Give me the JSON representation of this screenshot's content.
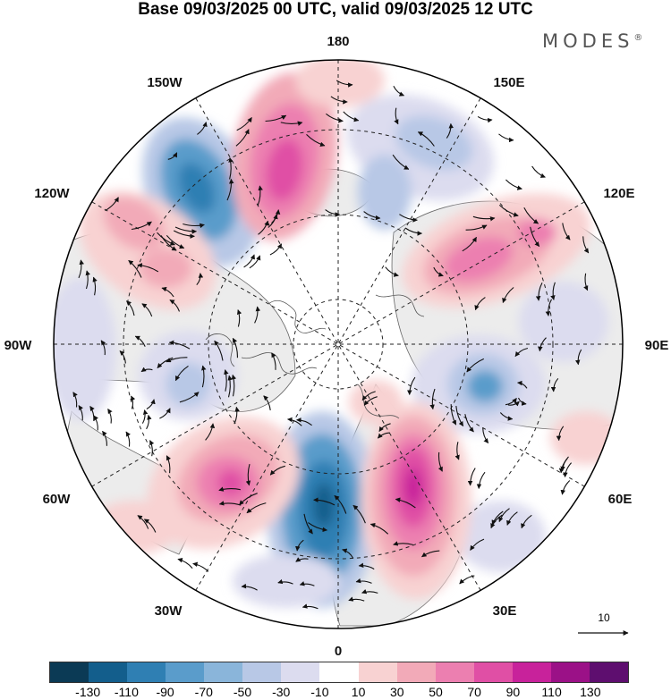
{
  "title": "Base 09/03/2025 00 UTC, valid 09/03/2025 12 UTC",
  "brand": "MODES",
  "brand_mark": "®",
  "map": {
    "projection": "north-polar-stereographic",
    "longitude_labels": {
      "top": "180",
      "top_left": "150W",
      "top_right": "150E",
      "upper_left": "120W",
      "upper_right": "120E",
      "left": "90W",
      "right": "90E",
      "lower_left": "60W",
      "lower_right": "60E",
      "bottom_left": "30W",
      "bottom_right": "30E",
      "bottom": "0"
    },
    "vector_reference": "10",
    "colors": {
      "land": "#f2f2f2",
      "ocean": "#ffffff",
      "coast": "#555555",
      "grid": "#222222",
      "arrow": "#111111"
    }
  },
  "colorbar": {
    "colors": [
      "#0b3a55",
      "#135e8c",
      "#2f7fb3",
      "#5a9ccb",
      "#8ab5da",
      "#b8c8e6",
      "#dcdcef",
      "#ffffff",
      "#f8d2d2",
      "#f2aab8",
      "#ec7fb0",
      "#e04fa5",
      "#c8229b",
      "#9b1187",
      "#5e0e6f"
    ],
    "tick_labels": [
      "-130",
      "-110",
      "-90",
      "-70",
      "-50",
      "-30",
      "-10",
      "10",
      "30",
      "50",
      "70",
      "90",
      "110",
      "130"
    ]
  }
}
